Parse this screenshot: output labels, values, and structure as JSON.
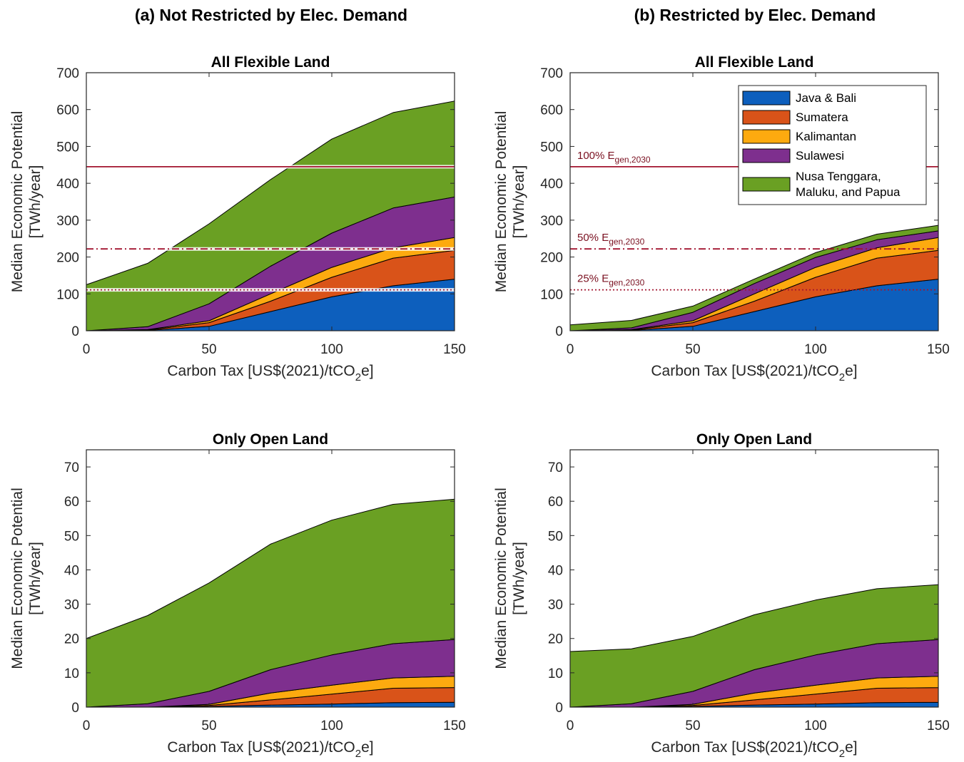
{
  "column_titles": [
    "(a) Not Restricted by Elec. Demand",
    "(b) Restricted by Elec. Demand"
  ],
  "colors": {
    "Java & Bali": "#0d5fbd",
    "Sumatera": "#d95319",
    "Kalimantan": "#fdaa0f",
    "Sulawesi": "#7e2f8e",
    "Nusa Tenggara, Maluku, and Papua": "#6aa023",
    "reference_line": "#a2142f"
  },
  "legend": {
    "entries": [
      {
        "lines": [
          "Java & Bali"
        ]
      },
      {
        "lines": [
          "Sumatera"
        ]
      },
      {
        "lines": [
          "Kalimantan"
        ]
      },
      {
        "lines": [
          "Sulawesi"
        ]
      },
      {
        "lines": [
          "Nusa Tenggara,",
          "Maluku, and Papua"
        ]
      }
    ],
    "placement": "top-right of panel (b) All Flexible Land"
  },
  "chart_data": [
    {
      "type": "area",
      "stacked": true,
      "title": "All Flexible Land",
      "xlabel": "Carbon Tax [US$(2021)/tCO2e]",
      "ylabel": [
        "Median Economic Potential",
        "[TWh/year]"
      ],
      "x": [
        0,
        25,
        50,
        75,
        100,
        125,
        150
      ],
      "xlim": [
        0,
        150
      ],
      "xticks": [
        0,
        50,
        100,
        150
      ],
      "ylim": [
        0,
        700
      ],
      "yticks": [
        0,
        100,
        200,
        300,
        400,
        500,
        600,
        700
      ],
      "series": [
        {
          "name": "Java & Bali",
          "values": [
            0,
            1,
            12,
            52,
            92,
            122,
            140
          ]
        },
        {
          "name": "Sumatera",
          "values": [
            0,
            1,
            10,
            28,
            53,
            75,
            78
          ]
        },
        {
          "name": "Kalimantan",
          "values": [
            0,
            1,
            5,
            20,
            27,
            28,
            35
          ]
        },
        {
          "name": "Sulawesi",
          "values": [
            0,
            8,
            46,
            75,
            93,
            108,
            110
          ]
        },
        {
          "name": "Nusa Tenggara, Maluku, and Papua",
          "values": [
            125,
            172,
            217,
            235,
            255,
            259,
            260
          ]
        }
      ],
      "reference_lines": [
        {
          "y": 445,
          "style": "solid",
          "label": ""
        },
        {
          "y": 222,
          "style": "dashdot",
          "label": ""
        },
        {
          "y": 111,
          "style": "dotted",
          "label": ""
        }
      ]
    },
    {
      "type": "area",
      "stacked": true,
      "title": "All Flexible Land",
      "xlabel": "Carbon Tax [US$(2021)/tCO2e]",
      "ylabel": [
        "Median Economic Potential",
        "[TWh/year]"
      ],
      "x": [
        0,
        25,
        50,
        75,
        100,
        125,
        150
      ],
      "xlim": [
        0,
        150
      ],
      "xticks": [
        0,
        50,
        100,
        150
      ],
      "ylim": [
        0,
        700
      ],
      "yticks": [
        0,
        100,
        200,
        300,
        400,
        500,
        600,
        700
      ],
      "series": [
        {
          "name": "Java & Bali",
          "values": [
            0,
            1,
            12,
            52,
            92,
            122,
            140
          ]
        },
        {
          "name": "Sumatera",
          "values": [
            0,
            1,
            10,
            28,
            53,
            75,
            78
          ]
        },
        {
          "name": "Kalimantan",
          "values": [
            0,
            1,
            5,
            20,
            27,
            28,
            35
          ]
        },
        {
          "name": "Sulawesi",
          "values": [
            0,
            5,
            23,
            28,
            27,
            22,
            18
          ]
        },
        {
          "name": "Nusa Tenggara, Maluku, and Papua",
          "values": [
            16,
            20,
            17,
            12,
            13,
            15,
            15
          ]
        }
      ],
      "reference_lines": [
        {
          "y": 445,
          "style": "solid",
          "label": {
            "main": "100% E",
            "sub": "gen,2030"
          }
        },
        {
          "y": 222,
          "style": "dashdot",
          "label": {
            "main": "50% E",
            "sub": "gen,2030"
          }
        },
        {
          "y": 111,
          "style": "dotted",
          "label": {
            "main": "25% E",
            "sub": "gen,2030"
          }
        }
      ]
    },
    {
      "type": "area",
      "stacked": true,
      "title": "Only Open Land",
      "xlabel": "Carbon Tax [US$(2021)/tCO2e]",
      "ylabel": [
        "Median Economic Potential",
        "[TWh/year]"
      ],
      "x": [
        0,
        25,
        50,
        75,
        100,
        125,
        150
      ],
      "xlim": [
        0,
        150
      ],
      "xticks": [
        0,
        50,
        100,
        150
      ],
      "ylim": [
        0,
        75
      ],
      "yticks": [
        0,
        10,
        20,
        30,
        40,
        50,
        60,
        70
      ],
      "series": [
        {
          "name": "Java & Bali",
          "values": [
            0,
            0,
            0.2,
            0.6,
            0.9,
            1.3,
            1.4
          ]
        },
        {
          "name": "Sumatera",
          "values": [
            0,
            0,
            0.3,
            1.5,
            2.9,
            4.2,
            4.3
          ]
        },
        {
          "name": "Kalimantan",
          "values": [
            0,
            0,
            0.3,
            2.0,
            2.6,
            3.0,
            3.3
          ]
        },
        {
          "name": "Sulawesi",
          "values": [
            0,
            1.0,
            3.8,
            6.8,
            8.8,
            10.0,
            10.7
          ]
        },
        {
          "name": "Nusa Tenggara, Maluku, and Papua",
          "values": [
            20,
            25.7,
            31.6,
            36.6,
            39.3,
            40.6,
            40.9
          ]
        }
      ]
    },
    {
      "type": "area",
      "stacked": true,
      "title": "Only Open Land",
      "xlabel": "Carbon Tax [US$(2021)/tCO2e]",
      "ylabel": [
        "Median Economic Potential",
        "[TWh/year]"
      ],
      "x": [
        0,
        25,
        50,
        75,
        100,
        125,
        150
      ],
      "xlim": [
        0,
        150
      ],
      "xticks": [
        0,
        50,
        100,
        150
      ],
      "ylim": [
        0,
        75
      ],
      "yticks": [
        0,
        10,
        20,
        30,
        40,
        50,
        60,
        70
      ],
      "series": [
        {
          "name": "Java & Bali",
          "values": [
            0,
            0,
            0.2,
            0.6,
            0.9,
            1.3,
            1.4
          ]
        },
        {
          "name": "Sumatera",
          "values": [
            0,
            0,
            0.3,
            1.5,
            2.9,
            4.2,
            4.3
          ]
        },
        {
          "name": "Kalimantan",
          "values": [
            0,
            0,
            0.3,
            2.0,
            2.6,
            3.0,
            3.3
          ]
        },
        {
          "name": "Sulawesi",
          "values": [
            0,
            1.0,
            3.8,
            6.8,
            8.8,
            10.0,
            10.7
          ]
        },
        {
          "name": "Nusa Tenggara, Maluku, and Papua",
          "values": [
            16.2,
            16.0,
            16.0,
            16.0,
            16.0,
            16.0,
            16.0
          ]
        }
      ]
    }
  ]
}
